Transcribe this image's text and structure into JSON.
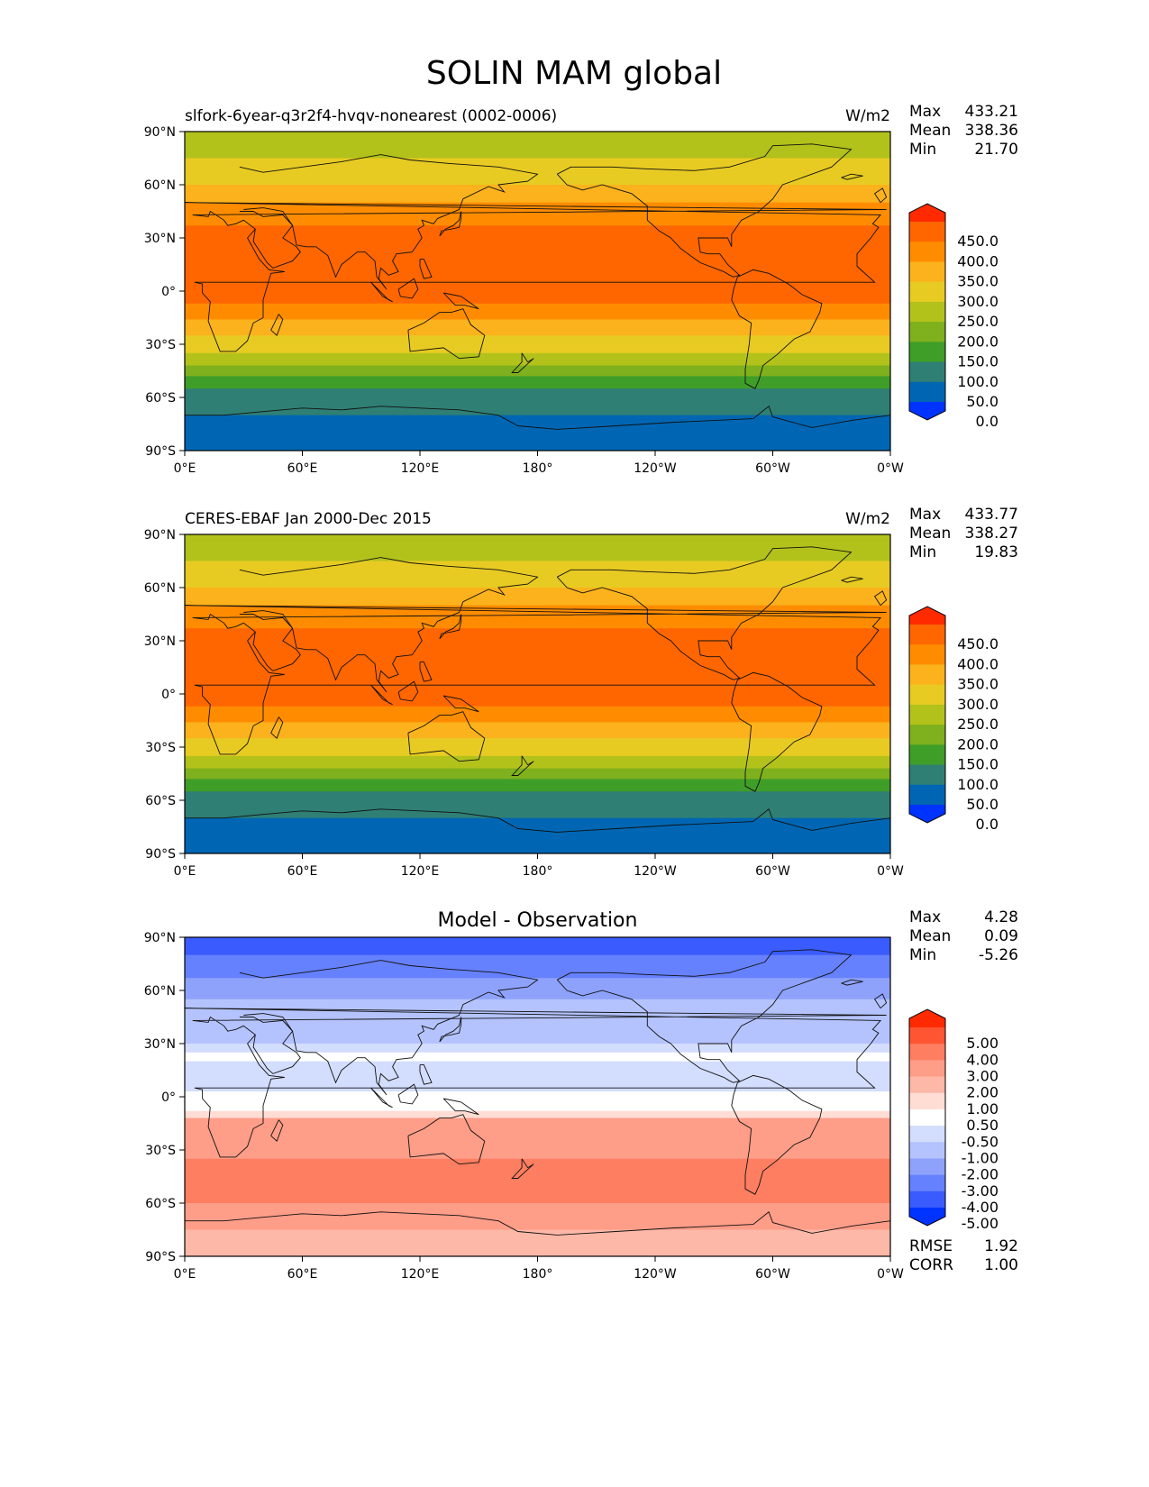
{
  "figure_title": "SOLIN MAM global",
  "chart_data": [
    {
      "type": "heatmap",
      "title": "slfork-6year-q3r2f4-hvqv-nonearest (0002-0006)",
      "units": "W/m2",
      "stats": {
        "max_label": "Max",
        "max": "433.21",
        "mean_label": "Mean",
        "mean": "338.36",
        "min_label": "Min",
        "min": "21.70"
      },
      "xticks": [
        "0°E",
        "60°E",
        "120°E",
        "180°",
        "120°W",
        "60°W",
        "0°W"
      ],
      "yticks": [
        "90°N",
        "60°N",
        "30°N",
        "0°",
        "30°S",
        "60°S",
        "90°S"
      ],
      "xlim": [
        0,
        360
      ],
      "ylim": [
        -90,
        90
      ],
      "colorbar": {
        "labels": [
          "450.0",
          "400.0",
          "350.0",
          "300.0",
          "250.0",
          "200.0",
          "150.0",
          "100.0",
          "50.0",
          "0.0"
        ],
        "colors": [
          "#ff2a00",
          "#ff6600",
          "#ff8c00",
          "#fbb21c",
          "#e8cb22",
          "#b2c21b",
          "#7fb01d",
          "#3f9e28",
          "#2f7f74",
          "#0066b3",
          "#0033ff"
        ]
      },
      "bands": [
        {
          "lat_top": 90,
          "lat_bottom": 75,
          "bin": 5
        },
        {
          "lat_top": 75,
          "lat_bottom": 60,
          "bin": 4
        },
        {
          "lat_top": 60,
          "lat_bottom": 50,
          "bin": 3
        },
        {
          "lat_top": 50,
          "lat_bottom": 37,
          "bin": 2
        },
        {
          "lat_top": 37,
          "lat_bottom": -7,
          "bin": 1
        },
        {
          "lat_top": -7,
          "lat_bottom": -16,
          "bin": 2
        },
        {
          "lat_top": -16,
          "lat_bottom": -25,
          "bin": 3
        },
        {
          "lat_top": -25,
          "lat_bottom": -35,
          "bin": 4
        },
        {
          "lat_top": -35,
          "lat_bottom": -42,
          "bin": 5
        },
        {
          "lat_top": -42,
          "lat_bottom": -48,
          "bin": 6
        },
        {
          "lat_top": -48,
          "lat_bottom": -55,
          "bin": 7
        },
        {
          "lat_top": -55,
          "lat_bottom": -70,
          "bin": 8
        },
        {
          "lat_top": -70,
          "lat_bottom": -90,
          "bin": 9
        }
      ]
    },
    {
      "type": "heatmap",
      "title": "CERES-EBAF Jan 2000-Dec 2015",
      "units": "W/m2",
      "stats": {
        "max_label": "Max",
        "max": "433.77",
        "mean_label": "Mean",
        "mean": "338.27",
        "min_label": "Min",
        "min": "19.83"
      },
      "xticks": [
        "0°E",
        "60°E",
        "120°E",
        "180°",
        "120°W",
        "60°W",
        "0°W"
      ],
      "yticks": [
        "90°N",
        "60°N",
        "30°N",
        "0°",
        "30°S",
        "60°S",
        "90°S"
      ],
      "xlim": [
        0,
        360
      ],
      "ylim": [
        -90,
        90
      ],
      "colorbar": {
        "labels": [
          "450.0",
          "400.0",
          "350.0",
          "300.0",
          "250.0",
          "200.0",
          "150.0",
          "100.0",
          "50.0",
          "0.0"
        ],
        "colors": [
          "#ff2a00",
          "#ff6600",
          "#ff8c00",
          "#fbb21c",
          "#e8cb22",
          "#b2c21b",
          "#7fb01d",
          "#3f9e28",
          "#2f7f74",
          "#0066b3",
          "#0033ff"
        ]
      },
      "bands": [
        {
          "lat_top": 90,
          "lat_bottom": 75,
          "bin": 5
        },
        {
          "lat_top": 75,
          "lat_bottom": 60,
          "bin": 4
        },
        {
          "lat_top": 60,
          "lat_bottom": 50,
          "bin": 3
        },
        {
          "lat_top": 50,
          "lat_bottom": 37,
          "bin": 2
        },
        {
          "lat_top": 37,
          "lat_bottom": -7,
          "bin": 1
        },
        {
          "lat_top": -7,
          "lat_bottom": -16,
          "bin": 2
        },
        {
          "lat_top": -16,
          "lat_bottom": -25,
          "bin": 3
        },
        {
          "lat_top": -25,
          "lat_bottom": -35,
          "bin": 4
        },
        {
          "lat_top": -35,
          "lat_bottom": -42,
          "bin": 5
        },
        {
          "lat_top": -42,
          "lat_bottom": -48,
          "bin": 6
        },
        {
          "lat_top": -48,
          "lat_bottom": -55,
          "bin": 7
        },
        {
          "lat_top": -55,
          "lat_bottom": -70,
          "bin": 8
        },
        {
          "lat_top": -70,
          "lat_bottom": -90,
          "bin": 9
        }
      ]
    },
    {
      "type": "heatmap",
      "title": "Model - Observation",
      "units": "",
      "stats": {
        "max_label": "Max",
        "max": "4.28",
        "mean_label": "Mean",
        "mean": "0.09",
        "min_label": "Min",
        "min": "-5.26"
      },
      "extra_stats": {
        "rmse_label": "RMSE",
        "rmse": "1.92",
        "corr_label": "CORR",
        "corr": "1.00"
      },
      "xticks": [
        "0°E",
        "60°E",
        "120°E",
        "180°",
        "120°W",
        "60°W",
        "0°W"
      ],
      "yticks": [
        "90°N",
        "60°N",
        "30°N",
        "0°",
        "30°S",
        "60°S",
        "90°S"
      ],
      "xlim": [
        0,
        360
      ],
      "ylim": [
        -90,
        90
      ],
      "colorbar": {
        "labels": [
          "5.00",
          "4.00",
          "3.00",
          "2.00",
          "1.00",
          "0.50",
          "-0.50",
          "-1.00",
          "-2.00",
          "-3.00",
          "-4.00",
          "-5.00"
        ],
        "colors": [
          "#ff2a00",
          "#ff5533",
          "#fe7e61",
          "#fe9d88",
          "#feb8a8",
          "#ffdcd4",
          "#ffffff",
          "#d3ddfd",
          "#b4c3fd",
          "#8ea2fc",
          "#6681fd",
          "#3a5cfe",
          "#0033ff"
        ]
      },
      "bands": [
        {
          "lat_top": 90,
          "lat_bottom": 80,
          "bin": 11
        },
        {
          "lat_top": 80,
          "lat_bottom": 67,
          "bin": 10
        },
        {
          "lat_top": 67,
          "lat_bottom": 55,
          "bin": 9
        },
        {
          "lat_top": 55,
          "lat_bottom": 30,
          "bin": 8
        },
        {
          "lat_top": 30,
          "lat_bottom": 25,
          "bin": 7
        },
        {
          "lat_top": 25,
          "lat_bottom": 20,
          "bin": 6
        },
        {
          "lat_top": 20,
          "lat_bottom": 15,
          "bin": 7
        },
        {
          "lat_top": 15,
          "lat_bottom": 3,
          "bin": 7
        },
        {
          "lat_top": 3,
          "lat_bottom": -8,
          "bin": 6
        },
        {
          "lat_top": -8,
          "lat_bottom": -12,
          "bin": 5
        },
        {
          "lat_top": -12,
          "lat_bottom": -35,
          "bin": 3
        },
        {
          "lat_top": -35,
          "lat_bottom": -60,
          "bin": 2
        },
        {
          "lat_top": -60,
          "lat_bottom": -75,
          "bin": 3
        },
        {
          "lat_top": -75,
          "lat_bottom": -90,
          "bin": 4
        }
      ]
    }
  ]
}
